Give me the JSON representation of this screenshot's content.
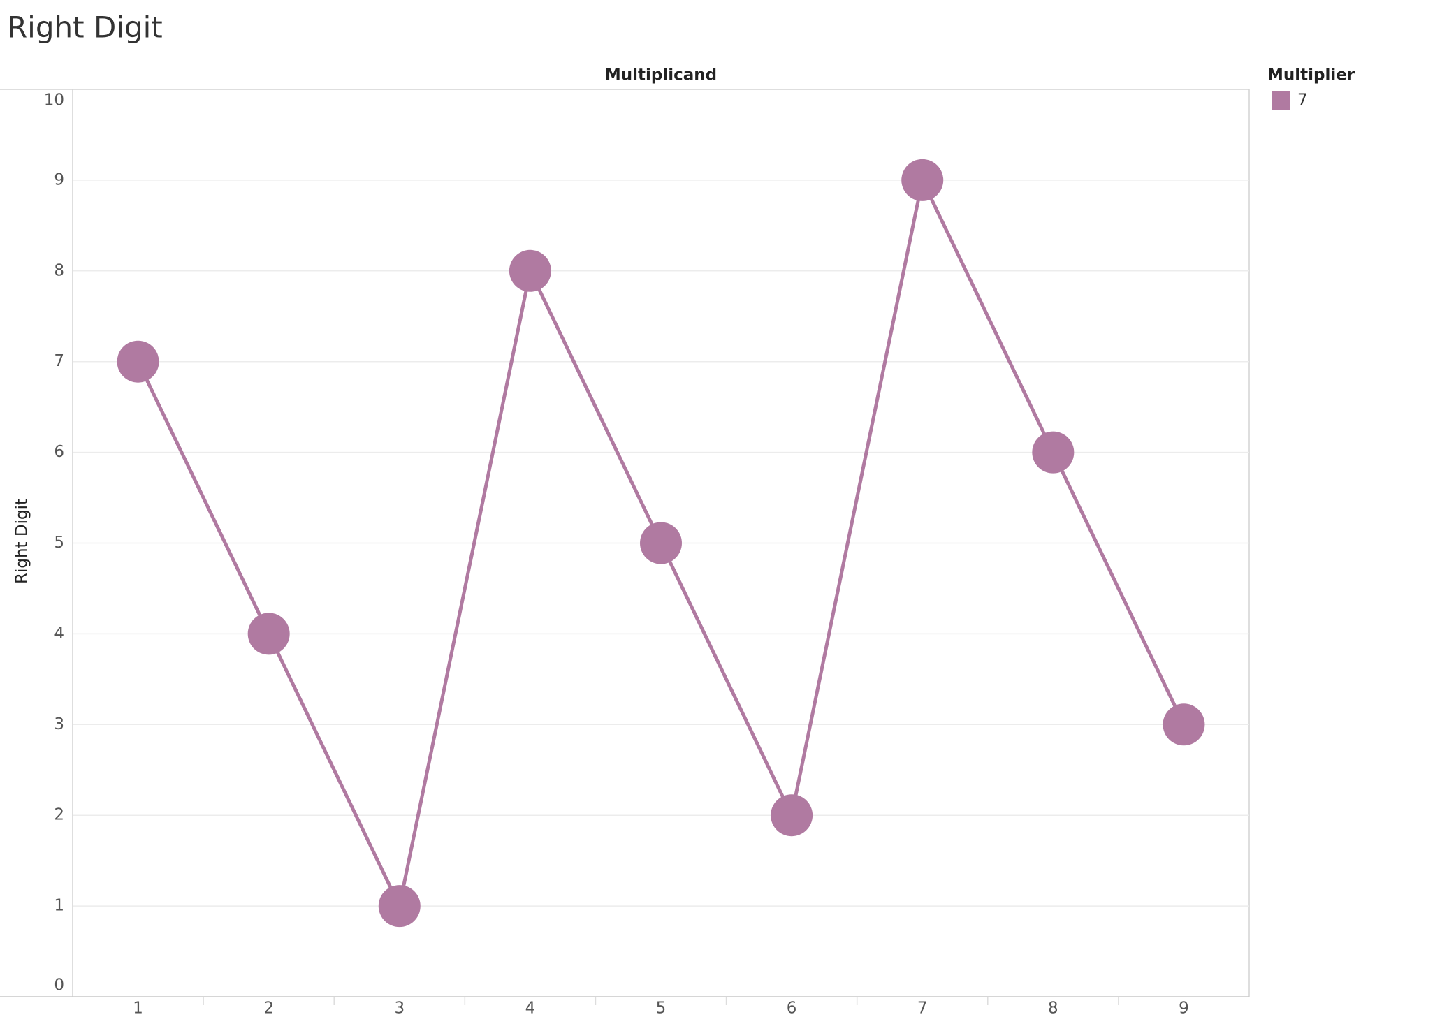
{
  "chart_data": {
    "type": "line",
    "title": "Right Digit",
    "x_label": "Multiplicand",
    "y_label": "Right Digit",
    "legend_title": "Multiplier",
    "categories": [
      "1",
      "2",
      "3",
      "4",
      "5",
      "6",
      "7",
      "8",
      "9"
    ],
    "series": [
      {
        "name": "7",
        "color": "#b07aa1",
        "values": [
          7,
          4,
          1,
          8,
          5,
          2,
          9,
          6,
          3
        ]
      }
    ],
    "ylim": [
      0,
      10
    ],
    "yticks": [
      0,
      1,
      2,
      3,
      4,
      5,
      6,
      7,
      8,
      9,
      10
    ],
    "grid": true
  }
}
